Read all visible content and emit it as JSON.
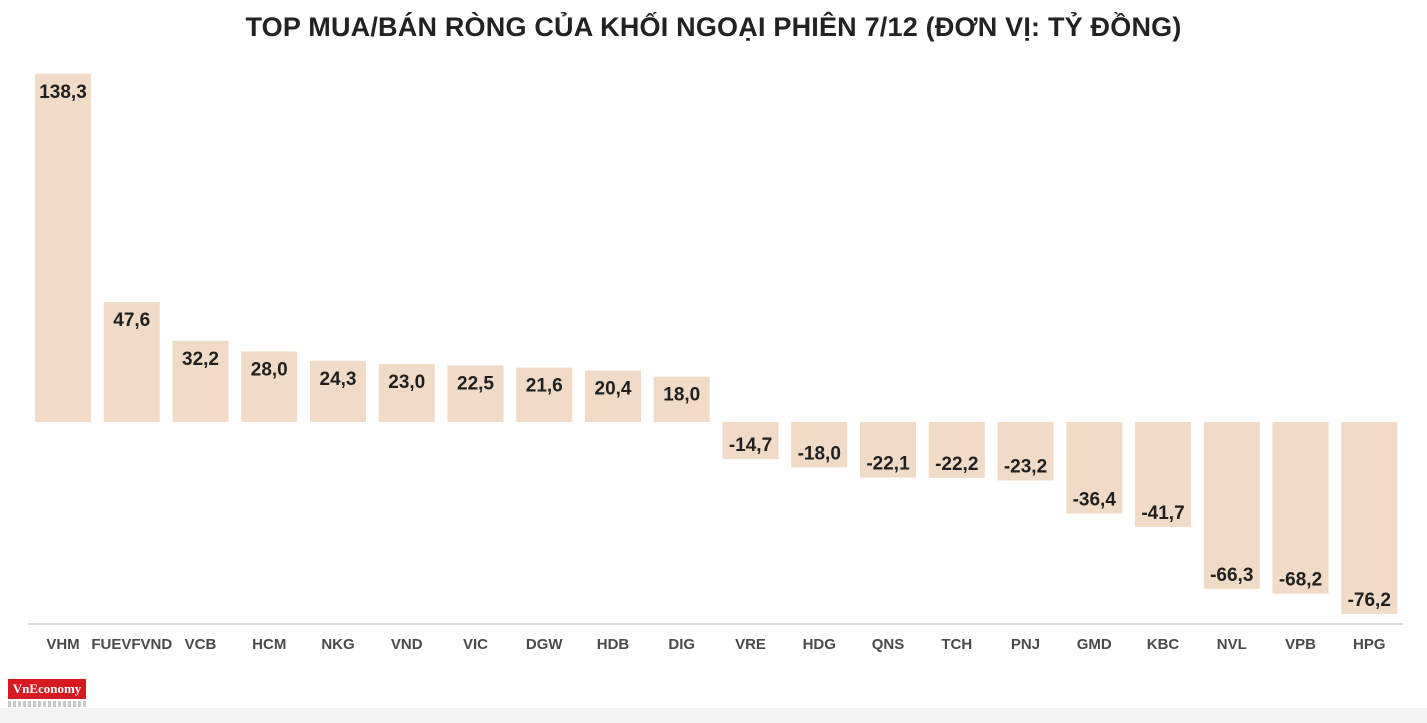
{
  "title": "TOP MUA/BÁN RÒNG CỦA KHỐI NGOẠI PHIÊN 7/12 (ĐƠN VỊ: TỶ ĐỒNG)",
  "logo_text": "VnEconomy",
  "colors": {
    "bar": "#f2dbc6",
    "axis": "#b5b5b5"
  },
  "chart_data": {
    "type": "bar",
    "title": "TOP MUA/BÁN RÒNG CỦA KHỐI NGOẠI PHIÊN 7/12 (ĐƠN VỊ: TỶ ĐỒNG)",
    "categories": [
      "VHM",
      "FUEVFVND",
      "VCB",
      "HCM",
      "NKG",
      "VND",
      "VIC",
      "DGW",
      "HDB",
      "DIG",
      "VRE",
      "HDG",
      "QNS",
      "TCH",
      "PNJ",
      "GMD",
      "KBC",
      "NVL",
      "VPB",
      "HPG"
    ],
    "values": [
      138.3,
      47.6,
      32.2,
      28.0,
      24.3,
      23.0,
      22.5,
      21.6,
      20.4,
      18.0,
      -14.7,
      -18.0,
      -22.1,
      -22.2,
      -23.2,
      -36.4,
      -41.7,
      -66.3,
      -68.2,
      -76.2
    ],
    "value_labels": [
      "138,3",
      "47,6",
      "32,2",
      "28,0",
      "24,3",
      "23,0",
      "22,5",
      "21,6",
      "20,4",
      "18,0",
      "-14,7",
      "-18,0",
      "-22,1",
      "-22,2",
      "-23,2",
      "-36,4",
      "-41,7",
      "-66,3",
      "-68,2",
      "-76,2"
    ],
    "ylim": [
      -80,
      140
    ],
    "xlabel": "",
    "ylabel": "",
    "grid": false,
    "legend": "none"
  }
}
